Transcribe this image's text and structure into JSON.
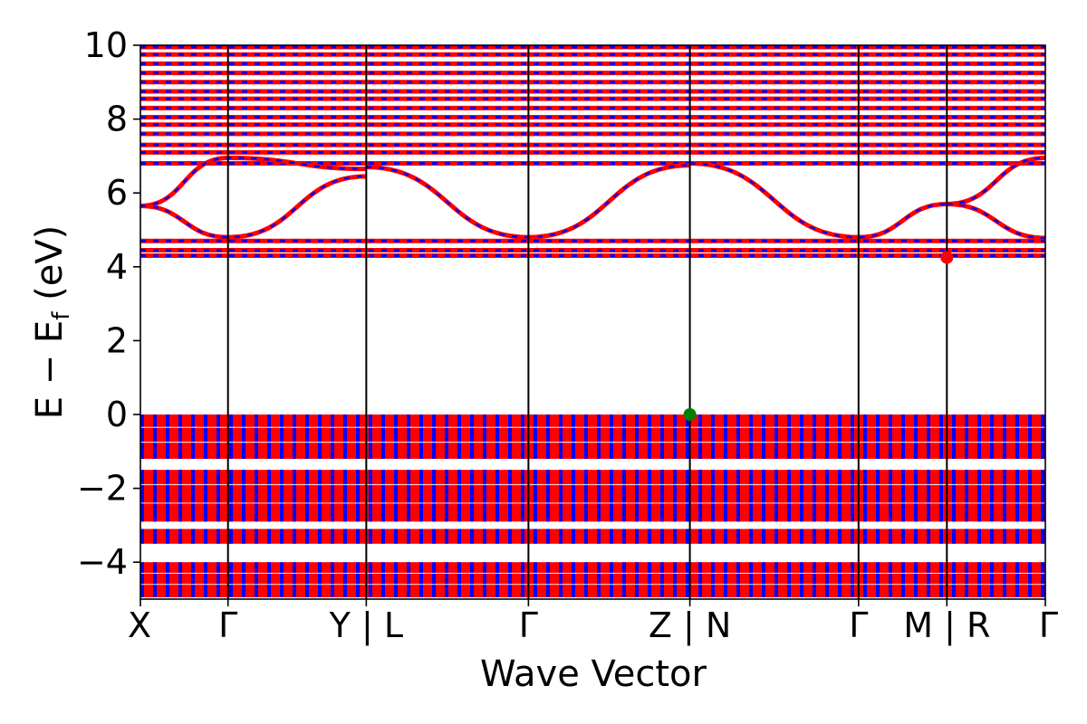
{
  "chart_data": {
    "type": "line",
    "title": "",
    "xlabel": "Wave Vector",
    "ylabel_main": "E − E",
    "ylabel_sub": "f",
    "ylabel_unit": " (eV)",
    "ylim": [
      -5,
      10
    ],
    "yticks": [
      -4,
      -2,
      0,
      2,
      4,
      6,
      8,
      10
    ],
    "ytick_labels": [
      "−4",
      "−2",
      "0",
      "2",
      "4",
      "6",
      "8",
      "10"
    ],
    "path_breakpoints": [
      0,
      0.0968,
      0.2496,
      0.4288,
      0.6072,
      0.7936,
      0.8912,
      1.0
    ],
    "xtick_labels": [
      "X",
      "Γ",
      "Y | L",
      "Γ",
      "Z | N",
      "Γ",
      "M | R",
      "Γ"
    ],
    "band_colors": {
      "spin_up": "#ff0000",
      "spin_down": "#0000ff"
    },
    "markers": [
      {
        "name": "VBM",
        "x": 0.6072,
        "y": 0.0,
        "color": "#008000"
      },
      {
        "name": "CBM",
        "x": 0.8912,
        "y": 4.25,
        "color": "#ff0000"
      }
    ],
    "bands": {
      "dispersive_conduction": [
        {
          "x": [
            0,
            0.0968,
            0.2496
          ],
          "y": [
            5.65,
            4.8,
            6.45
          ]
        },
        {
          "x": [
            0,
            0.0968,
            0.2496
          ],
          "y": [
            5.65,
            6.95,
            6.65
          ]
        },
        {
          "x": [
            0.2496,
            0.4288,
            0.6072
          ],
          "y": [
            6.7,
            4.8,
            6.75
          ]
        },
        {
          "x": [
            0.6072,
            0.7936,
            0.8912
          ],
          "y": [
            6.8,
            4.8,
            5.7
          ]
        },
        {
          "x": [
            0.8912,
            1.0
          ],
          "y": [
            5.7,
            4.78
          ]
        },
        {
          "x": [
            0.8912,
            1.0
          ],
          "y": [
            5.7,
            6.95
          ]
        }
      ],
      "flat_conduction": [
        4.3,
        4.45,
        4.7,
        6.8,
        7.1,
        7.3,
        7.6,
        7.85,
        8.05,
        8.3,
        8.55,
        8.75,
        9.0,
        9.25,
        9.5,
        9.75,
        9.95
      ],
      "valence_blocks": [
        {
          "top": 0.0,
          "bottom": -1.2
        },
        {
          "top": -1.5,
          "bottom": -2.9
        },
        {
          "top": -3.1,
          "bottom": -3.5
        },
        {
          "top": -4.0,
          "bottom": -4.95
        }
      ],
      "valence_gaps": [
        -0.35,
        -0.75,
        -1.9,
        -2.4,
        -4.3,
        -4.6
      ]
    }
  }
}
